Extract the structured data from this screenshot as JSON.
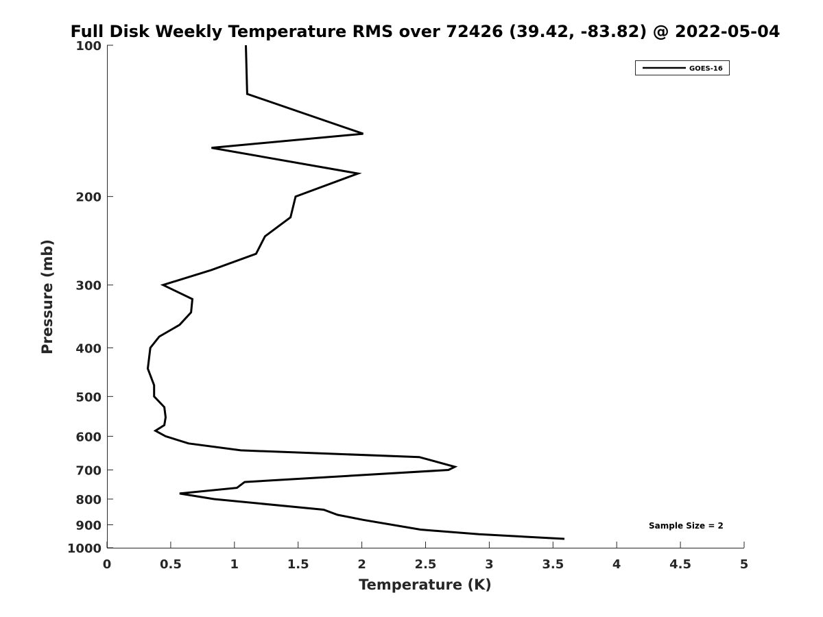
{
  "chart_data": {
    "type": "line",
    "title": "Full Disk Weekly Temperature RMS over 72426 (39.42, -83.82) @ 2022-05-04",
    "xlabel": "Temperature (K)",
    "ylabel": "Pressure (mb)",
    "xlim": [
      0,
      5
    ],
    "ylim": [
      1000,
      100
    ],
    "y_scale": "log",
    "x_ticks": [
      "0",
      "0.5",
      "1",
      "1.5",
      "2",
      "2.5",
      "3",
      "3.5",
      "4",
      "4.5",
      "5"
    ],
    "y_ticks": [
      "100",
      "200",
      "300",
      "400",
      "500",
      "600",
      "700",
      "800",
      "900",
      "1000"
    ],
    "grid": false,
    "legend_position": "top-right",
    "annotation": "Sample Size = 2",
    "series": [
      {
        "name": "GOES-16",
        "color": "#000000",
        "points": [
          {
            "x": 1.09,
            "p": 100
          },
          {
            "x": 1.1,
            "p": 125
          },
          {
            "x": 2.01,
            "p": 150
          },
          {
            "x": 0.82,
            "p": 160
          },
          {
            "x": 1.97,
            "p": 180
          },
          {
            "x": 1.48,
            "p": 200
          },
          {
            "x": 1.44,
            "p": 220
          },
          {
            "x": 1.24,
            "p": 240
          },
          {
            "x": 1.17,
            "p": 260
          },
          {
            "x": 0.82,
            "p": 280
          },
          {
            "x": 0.44,
            "p": 300
          },
          {
            "x": 0.67,
            "p": 320
          },
          {
            "x": 0.66,
            "p": 340
          },
          {
            "x": 0.57,
            "p": 360
          },
          {
            "x": 0.41,
            "p": 380
          },
          {
            "x": 0.34,
            "p": 400
          },
          {
            "x": 0.33,
            "p": 420
          },
          {
            "x": 0.32,
            "p": 440
          },
          {
            "x": 0.37,
            "p": 475
          },
          {
            "x": 0.37,
            "p": 500
          },
          {
            "x": 0.45,
            "p": 525
          },
          {
            "x": 0.46,
            "p": 550
          },
          {
            "x": 0.45,
            "p": 570
          },
          {
            "x": 0.38,
            "p": 585
          },
          {
            "x": 0.46,
            "p": 600
          },
          {
            "x": 0.64,
            "p": 620
          },
          {
            "x": 1.05,
            "p": 640
          },
          {
            "x": 2.45,
            "p": 660
          },
          {
            "x": 2.73,
            "p": 690
          },
          {
            "x": 2.68,
            "p": 700
          },
          {
            "x": 1.08,
            "p": 740
          },
          {
            "x": 1.02,
            "p": 760
          },
          {
            "x": 0.57,
            "p": 780
          },
          {
            "x": 0.84,
            "p": 800
          },
          {
            "x": 1.7,
            "p": 840
          },
          {
            "x": 1.81,
            "p": 860
          },
          {
            "x": 2.01,
            "p": 880
          },
          {
            "x": 2.46,
            "p": 920
          },
          {
            "x": 2.92,
            "p": 940
          },
          {
            "x": 3.59,
            "p": 960
          }
        ]
      }
    ]
  }
}
